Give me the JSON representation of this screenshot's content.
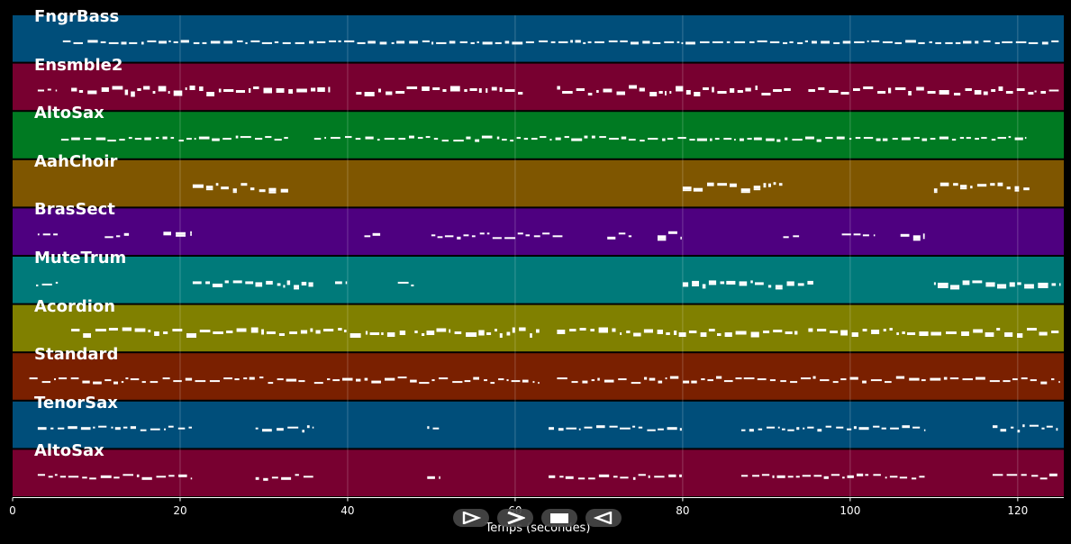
{
  "timeline": {
    "x_axis_label": "Temps (secondes)",
    "x_ticks": [
      0,
      20,
      40,
      60,
      80,
      100,
      120
    ],
    "x_min": 0,
    "x_max": 125.5
  },
  "tracks": [
    {
      "name": "FngrBass",
      "color": "#004e7a",
      "phrases": [
        [
          6,
          125,
          1,
          1
        ]
      ]
    },
    {
      "name": "Ensmble2",
      "color": "#780030",
      "phrases": [
        [
          3,
          5.3,
          1,
          3
        ],
        [
          7,
          38,
          2,
          4
        ],
        [
          41,
          61,
          2,
          4
        ],
        [
          65,
          93,
          2,
          4
        ],
        [
          95,
          122,
          2,
          4
        ],
        [
          122,
          125,
          1,
          2
        ]
      ]
    },
    {
      "name": "AltoSax",
      "color": "#007a22",
      "phrases": [
        [
          5.8,
          33,
          1,
          2
        ],
        [
          36,
          121,
          1,
          2
        ]
      ]
    },
    {
      "name": "AahChoir",
      "color": "#7f5600",
      "phrases": [
        [
          21.5,
          33,
          2,
          4
        ],
        [
          80,
          92,
          2,
          4
        ],
        [
          110,
          121.5,
          2,
          4
        ]
      ]
    },
    {
      "name": "BrasSect",
      "color": "#4e0080",
      "phrases": [
        [
          3,
          5.5,
          1,
          1
        ],
        [
          11,
          14,
          1,
          3
        ],
        [
          18,
          21.5,
          2,
          3
        ],
        [
          42,
          44,
          1,
          3
        ],
        [
          50,
          66,
          1,
          3
        ],
        [
          71,
          74,
          1,
          3
        ],
        [
          77,
          80,
          2,
          3
        ],
        [
          92,
          94,
          1,
          3
        ],
        [
          99,
          103,
          1,
          3
        ],
        [
          106,
          109,
          2,
          3
        ]
      ]
    },
    {
      "name": "MuteTrum",
      "color": "#007a7a",
      "phrases": [
        [
          2.8,
          5.5,
          1,
          3
        ],
        [
          21.5,
          36,
          2,
          3
        ],
        [
          38.5,
          40,
          1,
          3
        ],
        [
          46,
          48,
          1,
          2
        ],
        [
          80,
          96,
          2,
          3
        ],
        [
          110,
          125,
          2,
          3
        ]
      ]
    },
    {
      "name": "Acordion",
      "color": "#808000",
      "phrases": [
        [
          7,
          47,
          2,
          3
        ],
        [
          48,
          63,
          2,
          3
        ],
        [
          65,
          94,
          2,
          3
        ],
        [
          95,
          125,
          2,
          3
        ]
      ]
    },
    {
      "name": "Standard",
      "color": "#7a2000",
      "phrases": [
        [
          2,
          35,
          1,
          3
        ],
        [
          36,
          63,
          1,
          3
        ],
        [
          65,
          125,
          1,
          3
        ]
      ]
    },
    {
      "name": "TenorSax",
      "color": "#004e7a",
      "phrases": [
        [
          3,
          21.5,
          1,
          2
        ],
        [
          29,
          36,
          1,
          3
        ],
        [
          49.5,
          51,
          1,
          2
        ],
        [
          64,
          80,
          1,
          2
        ],
        [
          87,
          109,
          1,
          2
        ],
        [
          117,
          125,
          1,
          3
        ]
      ]
    },
    {
      "name": "AltoSax",
      "color": "#780030",
      "phrases": [
        [
          3,
          21.5,
          1,
          2
        ],
        [
          29,
          36,
          1,
          3
        ],
        [
          49.5,
          51,
          1,
          2
        ],
        [
          64,
          80,
          1,
          2
        ],
        [
          87,
          109,
          1,
          2
        ],
        [
          117,
          125,
          1,
          3
        ]
      ]
    }
  ],
  "controls": {
    "play_icon": "play-icon",
    "next_icon": "fast-forward-icon",
    "stop_icon": "stop-icon",
    "back_icon": "rewind-icon"
  }
}
